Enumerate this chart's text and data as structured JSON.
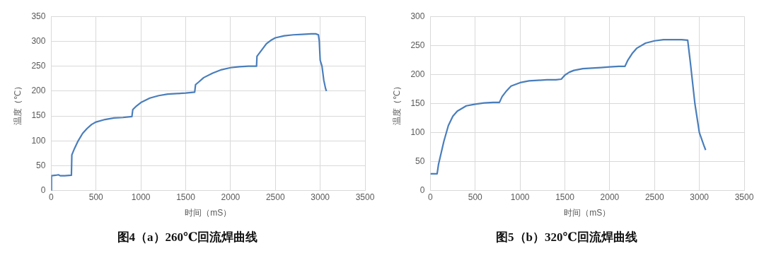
{
  "chart_data": [
    {
      "type": "line",
      "title": "图4（a）260℃回流焊曲线",
      "xlabel": "时间（mS）",
      "ylabel": "温度（℃）",
      "xlim": [
        0,
        3500
      ],
      "xticks": [
        0,
        500,
        1000,
        1500,
        2000,
        2500,
        3000,
        3500
      ],
      "ylim": [
        0,
        350
      ],
      "yticks": [
        0,
        50,
        100,
        150,
        200,
        250,
        300,
        350
      ],
      "grid": true,
      "marker": "none",
      "series": [
        {
          "color": "#4a7ebb",
          "x": [
            0,
            3,
            50,
            80,
            100,
            150,
            225,
            230,
            260,
            300,
            350,
            400,
            450,
            500,
            600,
            700,
            800,
            900,
            910,
            950,
            1000,
            1100,
            1200,
            1300,
            1400,
            1500,
            1600,
            1610,
            1650,
            1700,
            1800,
            1900,
            2000,
            2100,
            2200,
            2290,
            2295,
            2350,
            2400,
            2450,
            2500,
            2600,
            2700,
            2800,
            2900,
            2950,
            2980,
            2990,
            3000,
            3020,
            3040,
            3060,
            3070
          ],
          "values": [
            0,
            30,
            31,
            32,
            30,
            30,
            31,
            72,
            85,
            100,
            115,
            125,
            133,
            138,
            143,
            146,
            147,
            149,
            163,
            170,
            177,
            186,
            191,
            194,
            195,
            196,
            198,
            213,
            219,
            227,
            236,
            243,
            247,
            249,
            250,
            250,
            270,
            283,
            295,
            302,
            307,
            311,
            313,
            314,
            315,
            315,
            313,
            300,
            262,
            250,
            222,
            205,
            200
          ]
        }
      ]
    },
    {
      "type": "line",
      "title": "图5（b）320℃回流焊曲线",
      "xlabel": "时间（mS）",
      "ylabel": "温度（℃）",
      "xlim": [
        0,
        3500
      ],
      "xticks": [
        0,
        500,
        1000,
        1500,
        2000,
        2500,
        3000,
        3500
      ],
      "ylim": [
        0,
        300
      ],
      "yticks": [
        0,
        50,
        100,
        150,
        200,
        250,
        300
      ],
      "grid": true,
      "marker": "none",
      "series": [
        {
          "color": "#4a7ebb",
          "x": [
            0,
            75,
            90,
            150,
            200,
            250,
            300,
            400,
            500,
            600,
            700,
            770,
            800,
            850,
            900,
            1000,
            1100,
            1200,
            1300,
            1400,
            1460,
            1500,
            1550,
            1600,
            1700,
            1800,
            1900,
            2000,
            2100,
            2170,
            2200,
            2250,
            2300,
            2400,
            2500,
            2600,
            2700,
            2800,
            2870,
            2900,
            2950,
            3000,
            3050,
            3070
          ],
          "values": [
            29,
            29,
            45,
            85,
            112,
            128,
            137,
            146,
            149,
            151,
            152,
            152,
            162,
            172,
            180,
            186,
            189,
            190,
            191,
            191,
            192,
            199,
            204,
            207,
            210,
            211,
            212,
            213,
            214,
            214,
            224,
            236,
            245,
            254,
            258,
            260,
            260,
            260,
            259,
            220,
            150,
            100,
            78,
            70
          ]
        }
      ]
    }
  ]
}
